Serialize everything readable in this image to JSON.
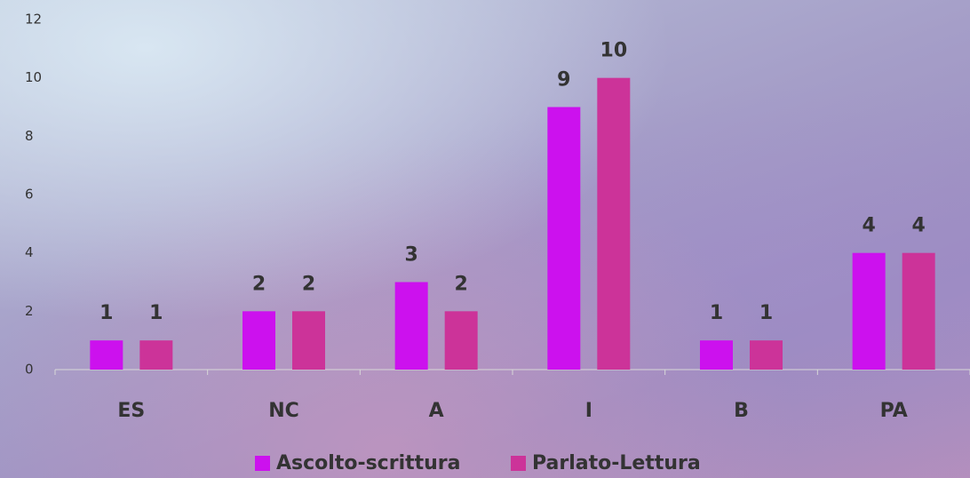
{
  "chart_data": {
    "type": "bar",
    "categories": [
      "ES",
      "NC",
      "A",
      "I",
      "B",
      "PA"
    ],
    "series": [
      {
        "name": "Ascolto-scrittura",
        "color": "#cc11ee",
        "values": [
          1,
          2,
          3,
          9,
          1,
          4
        ]
      },
      {
        "name": "Parlato-Lettura",
        "color": "#cc3399",
        "values": [
          1,
          2,
          2,
          10,
          1,
          4
        ]
      }
    ],
    "ylim": [
      0,
      12
    ],
    "yticks": [
      0,
      2,
      4,
      6,
      8,
      10,
      12
    ],
    "grid": false,
    "legend": "bottom"
  }
}
